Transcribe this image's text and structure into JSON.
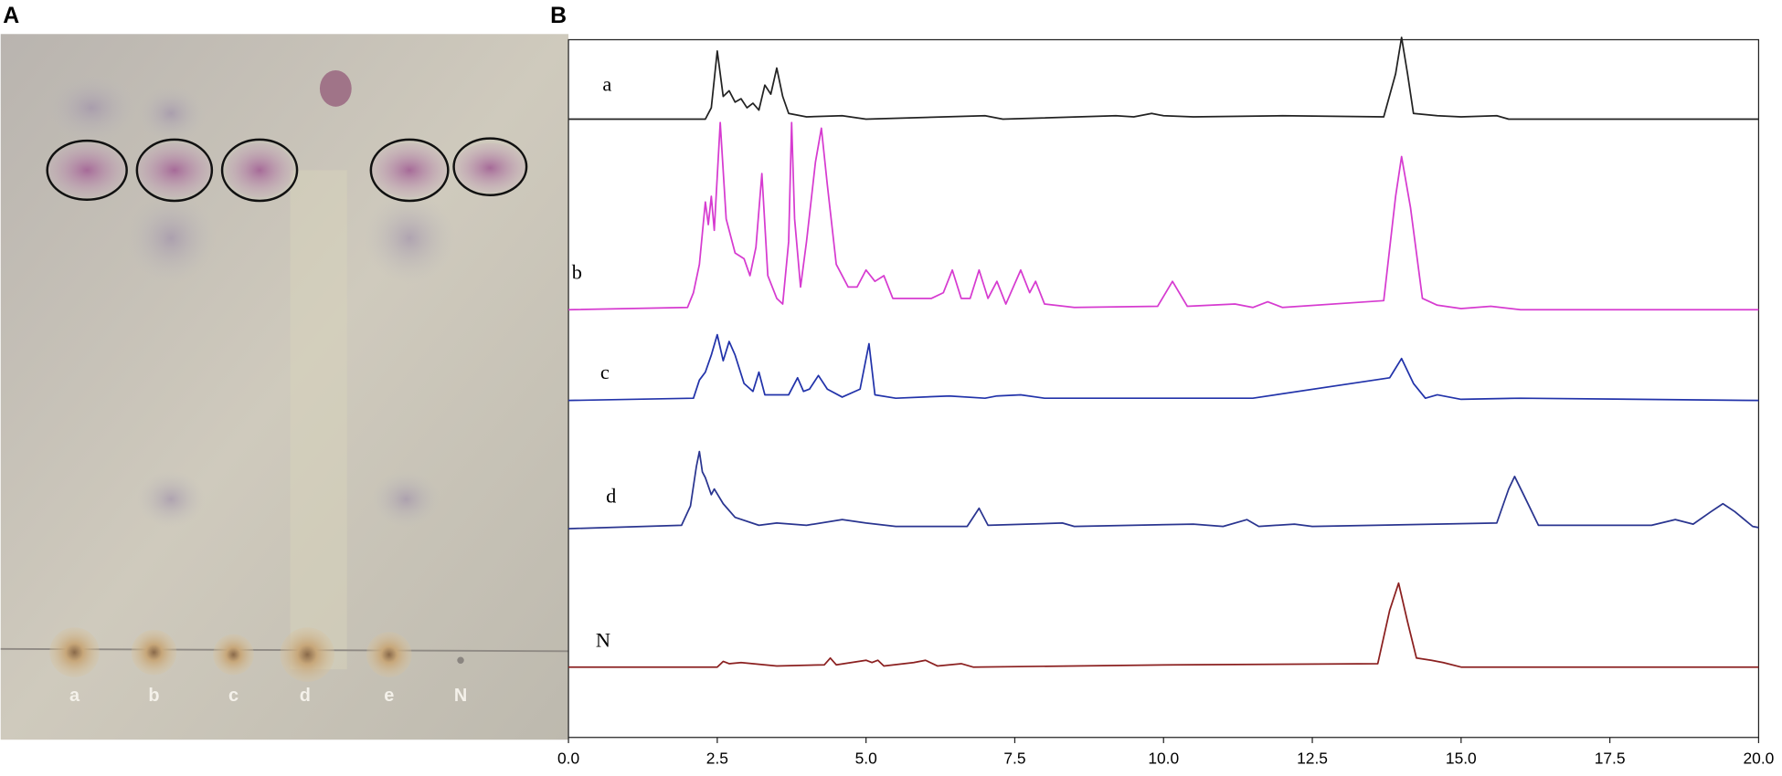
{
  "panels": [
    "A",
    "B"
  ],
  "plate": {
    "lanes": [
      "a",
      "b",
      "c",
      "d",
      "e",
      "N"
    ]
  },
  "chart_data": {
    "type": "line",
    "xlim": [
      0,
      20
    ],
    "xticks": [
      {
        "value": 0,
        "label": "0.0"
      },
      {
        "value": 2.5,
        "label": "2.5"
      },
      {
        "value": 5,
        "label": "5.0"
      },
      {
        "value": 7.5,
        "label": "7.5"
      },
      {
        "value": 10,
        "label": "10.0"
      },
      {
        "value": 12.5,
        "label": "12.5"
      },
      {
        "value": 15,
        "label": "15.0"
      },
      {
        "value": 17.5,
        "label": "17.5"
      },
      {
        "value": 20,
        "label": "20.0"
      }
    ],
    "series": [
      {
        "name": "a",
        "color": "#222222",
        "x": [
          0,
          2.3,
          2.4,
          2.5,
          2.6,
          2.7,
          2.8,
          2.9,
          3.0,
          3.1,
          3.2,
          3.3,
          3.4,
          3.5,
          3.6,
          3.7,
          4.0,
          4.6,
          5.0,
          7.0,
          7.3,
          9.2,
          9.5,
          9.8,
          10.0,
          10.5,
          12.0,
          13.7,
          13.9,
          14.0,
          14.1,
          14.2,
          14.6,
          15.0,
          15.6,
          15.8,
          20
        ],
        "values": [
          0,
          0,
          10,
          60,
          20,
          25,
          15,
          18,
          10,
          14,
          8,
          30,
          22,
          45,
          20,
          5,
          2,
          3,
          0,
          3,
          0,
          3,
          2,
          5,
          3,
          2,
          3,
          2,
          40,
          72,
          40,
          5,
          3,
          2,
          3,
          0,
          0
        ]
      },
      {
        "name": "b",
        "color": "#d63bd0",
        "x": [
          0,
          2.0,
          2.1,
          2.2,
          2.3,
          2.35,
          2.4,
          2.45,
          2.55,
          2.65,
          2.8,
          2.95,
          3.05,
          3.15,
          3.25,
          3.35,
          3.5,
          3.6,
          3.7,
          3.75,
          3.8,
          3.9,
          4.0,
          4.15,
          4.25,
          4.35,
          4.5,
          4.7,
          4.85,
          5.0,
          5.15,
          5.3,
          5.45,
          5.7,
          5.9,
          6.1,
          6.3,
          6.45,
          6.6,
          6.75,
          6.9,
          7.05,
          7.2,
          7.35,
          7.6,
          7.75,
          7.85,
          8.0,
          8.5,
          9.9,
          10.15,
          10.4,
          11.2,
          11.5,
          11.75,
          12.0,
          13.7,
          13.9,
          14.0,
          14.15,
          14.35,
          14.6,
          15.0,
          15.5,
          16,
          20
        ],
        "values": [
          0,
          2,
          15,
          40,
          95,
          75,
          100,
          70,
          165,
          80,
          50,
          45,
          30,
          55,
          120,
          30,
          10,
          5,
          60,
          165,
          80,
          20,
          60,
          130,
          160,
          110,
          40,
          20,
          20,
          35,
          25,
          30,
          10,
          10,
          10,
          10,
          15,
          35,
          10,
          10,
          35,
          10,
          25,
          5,
          35,
          15,
          25,
          5,
          2,
          3,
          25,
          3,
          5,
          2,
          7,
          2,
          8,
          100,
          135,
          90,
          10,
          4,
          1,
          3,
          0,
          0
        ]
      },
      {
        "name": "c",
        "color": "#2233aa",
        "x": [
          0,
          2.1,
          2.2,
          2.3,
          2.4,
          2.5,
          2.6,
          2.7,
          2.8,
          2.95,
          3.1,
          3.2,
          3.3,
          3.7,
          3.85,
          3.95,
          4.05,
          4.2,
          4.35,
          4.6,
          4.9,
          5.05,
          5.15,
          5.5,
          6.4,
          7.0,
          7.2,
          7.6,
          8.0,
          10.0,
          11.5,
          13.8,
          14.0,
          14.2,
          14.4,
          14.6,
          15.0,
          16.0,
          20
        ],
        "values": [
          0,
          2,
          18,
          25,
          40,
          58,
          35,
          52,
          40,
          15,
          8,
          25,
          5,
          5,
          20,
          8,
          10,
          22,
          10,
          3,
          10,
          50,
          5,
          2,
          4,
          2,
          4,
          5,
          2,
          2,
          2,
          20,
          37,
          15,
          2,
          5,
          1,
          2,
          0
        ]
      },
      {
        "name": "d",
        "color": "#2a3590",
        "x": [
          0,
          1.9,
          2.05,
          2.15,
          2.2,
          2.25,
          2.3,
          2.4,
          2.45,
          2.6,
          2.8,
          3.2,
          3.5,
          4.0,
          4.6,
          5.0,
          5.5,
          6.7,
          6.9,
          7.05,
          8.3,
          8.5,
          10.5,
          11.0,
          11.4,
          11.6,
          12.2,
          12.5,
          15.6,
          15.8,
          15.9,
          16.05,
          16.3,
          18.2,
          18.6,
          18.9,
          19.2,
          19.4,
          19.6,
          19.9,
          20
        ],
        "values": [
          0,
          3,
          20,
          55,
          68,
          50,
          45,
          30,
          35,
          22,
          10,
          3,
          5,
          3,
          8,
          5,
          2,
          2,
          18,
          3,
          5,
          2,
          4,
          2,
          8,
          2,
          4,
          2,
          5,
          35,
          46,
          30,
          3,
          3,
          8,
          4,
          15,
          22,
          15,
          2,
          1
        ]
      },
      {
        "name": "N",
        "color": "#8b2020",
        "x": [
          0,
          2.5,
          2.6,
          2.7,
          2.9,
          3.1,
          3.5,
          4.3,
          4.4,
          4.5,
          5.0,
          5.1,
          5.2,
          5.3,
          5.8,
          6.0,
          6.2,
          6.6,
          6.8,
          10.2,
          13.6,
          13.8,
          13.95,
          14.1,
          14.25,
          14.5,
          14.7,
          15.0,
          20
        ],
        "values": [
          0,
          0,
          5,
          3,
          4,
          3,
          1,
          2,
          8,
          2,
          6,
          4,
          6,
          1,
          4,
          6,
          1,
          3,
          0,
          2,
          3,
          50,
          74,
          40,
          8,
          6,
          4,
          0,
          0
        ]
      }
    ]
  }
}
